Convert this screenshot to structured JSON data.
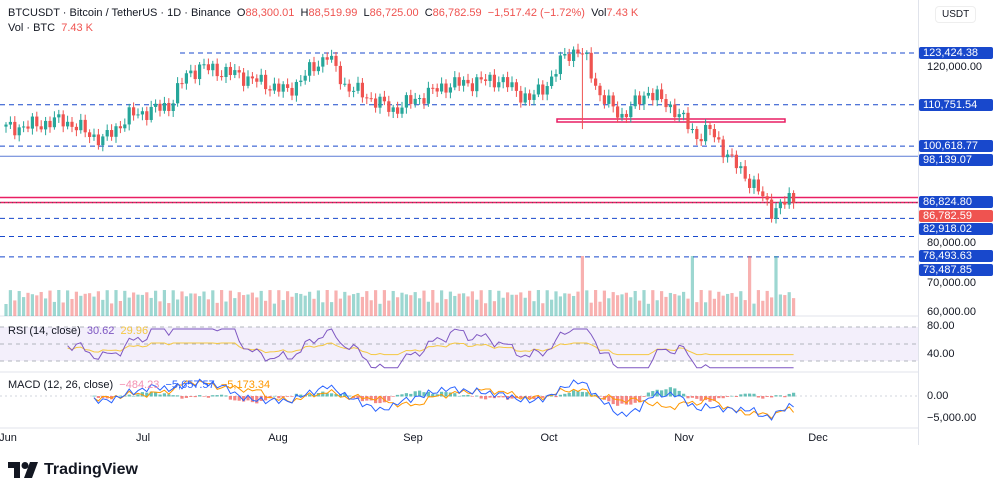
{
  "header": {
    "symbol": "BTCUSDT",
    "name": "Bitcoin / TetherUS",
    "interval": "1D",
    "exchange": "Binance",
    "o_label": "O",
    "open": "88,300.01",
    "h_label": "H",
    "high": "88,519.99",
    "l_label": "L",
    "low": "86,725.00",
    "c_label": "C",
    "close": "86,782.59",
    "change": "−1,517.42 (−1.72%)",
    "vol_label": "Vol",
    "vol": "7.43 K",
    "vol_row_label": "Vol · BTC",
    "vol_row_value": "7.43 K"
  },
  "axis": {
    "unit": "USDT",
    "ticks": [
      "120,000.00",
      "80,000.00",
      "70,000.00",
      "60,000.00"
    ],
    "rsi_ticks": [
      "80.00",
      "40.00"
    ],
    "macd_ticks": [
      "0.00",
      "−5,000.00"
    ]
  },
  "levels": [
    {
      "label": "123,424.38",
      "price": 123424.38,
      "style": "dashed"
    },
    {
      "label": "110,751.54",
      "price": 110751.54,
      "style": "dashed"
    },
    {
      "label": "100,618.77",
      "price": 100618.77,
      "style": "dashed"
    },
    {
      "label": "98,139.07",
      "price": 98139.07,
      "style": "solid"
    },
    {
      "label": "86,824.80",
      "price": 86824.8,
      "style": "pink"
    },
    {
      "label": "86,782.59",
      "price": 86782.59,
      "style": "last"
    },
    {
      "label": "82,918.02",
      "price": 82918.02,
      "style": "dashed"
    },
    {
      "label": "78,493.63",
      "price": 78493.63,
      "style": "dashed"
    },
    {
      "label": "73,487.85",
      "price": 73487.85,
      "style": "dashed"
    }
  ],
  "rsi": {
    "label": "RSI (14, close)",
    "value": "30.62",
    "ma": "29.96"
  },
  "macd": {
    "label": "MACD (12, 26, close)",
    "hist": "−484.23",
    "macd": "−5,657.57",
    "signal": "−5,173.34"
  },
  "xaxis": [
    "Jun",
    "Jul",
    "Aug",
    "Sep",
    "Oct",
    "Nov",
    "Dec"
  ],
  "logo": "TradingView",
  "colors": {
    "up": "#26a69a",
    "down": "#ef5350",
    "level": "#1848cc",
    "pink": "#e91e63"
  },
  "chart_data": {
    "type": "candlestick",
    "title": "BTCUSDT 1D",
    "ylim": [
      58000,
      126000
    ],
    "keypoints_day": [
      0,
      5,
      13,
      22,
      28,
      37,
      41,
      44,
      53,
      64,
      73,
      77,
      88,
      100,
      112,
      119,
      124,
      127,
      130,
      132,
      135,
      138,
      140,
      146,
      152,
      157,
      160,
      165,
      170,
      174,
      176,
      178,
      179
    ],
    "keypoints_price": [
      105000,
      105500,
      107000,
      102000,
      108000,
      110500,
      118000,
      120000,
      118000,
      114000,
      123000,
      115500,
      109500,
      115500,
      117000,
      112000,
      117000,
      123000,
      124000,
      121500,
      113000,
      110000,
      108000,
      114000,
      109500,
      103000,
      104500,
      97000,
      91000,
      85000,
      86000,
      87500,
      86782
    ]
  }
}
